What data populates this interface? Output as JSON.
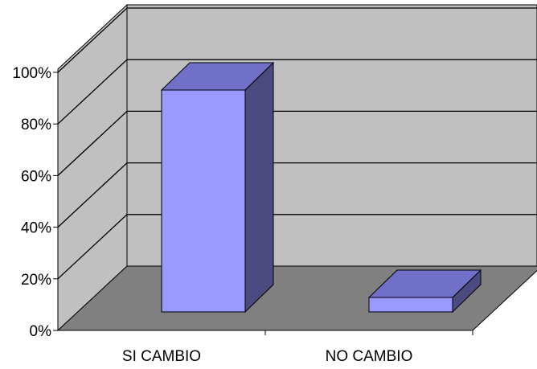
{
  "chart_data": {
    "type": "bar",
    "title": "",
    "xlabel": "",
    "ylabel": "",
    "categories": [
      "SI CAMBIO",
      "NO CAMBIO"
    ],
    "series": [
      {
        "values": [
          92,
          6
        ]
      }
    ],
    "ylim": [
      0,
      100
    ],
    "yticks": [
      "0%",
      "20%",
      "40%",
      "60%",
      "80%",
      "100%"
    ],
    "grid": true,
    "legend": "none",
    "style": "3d-column",
    "colors": {
      "bar_front": "#9999ff",
      "bar_top": "#7070c8",
      "bar_side": "#4b4b80",
      "back_wall": "#c0c0c0",
      "side_wall": "#c0c0c0",
      "floor": "#808080",
      "gridline": "#000000"
    }
  }
}
